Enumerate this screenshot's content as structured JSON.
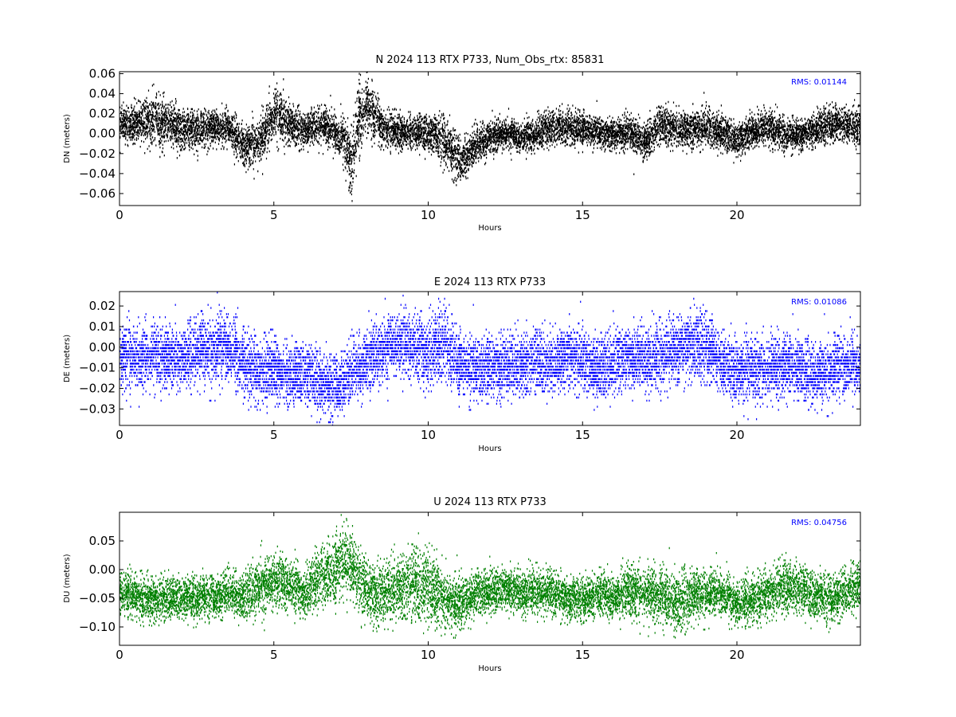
{
  "chart_data": [
    {
      "type": "scatter",
      "title": "N 2024 113 RTX  P733, Num_Obs_rtx: 85831",
      "xlabel": "Hours",
      "ylabel": "DN (meters)",
      "annotation": "RMS:  0.01144",
      "annotation_color": "#0000ff",
      "color": "#000000",
      "xlim": [
        0,
        24
      ],
      "ylim": [
        -0.072,
        0.062
      ],
      "xticks": [
        0,
        5,
        10,
        15,
        20
      ],
      "xtick_labels": [
        "0",
        "5",
        "10",
        "15",
        "20"
      ],
      "yticks": [
        0.06,
        0.04,
        0.02,
        0.0,
        -0.02,
        -0.04,
        -0.06
      ],
      "ytick_labels": [
        "0.06",
        "0.04",
        "0.02",
        "0.00",
        "−0.02",
        "−0.04",
        "−0.06"
      ],
      "x": [
        0,
        0.5,
        1,
        1.5,
        2,
        2.5,
        3,
        3.5,
        4,
        4.5,
        5,
        5.5,
        6,
        6.5,
        7,
        7.25,
        7.5,
        7.75,
        8,
        8.5,
        9,
        9.5,
        10,
        10.5,
        11,
        11.5,
        12,
        12.5,
        13,
        13.5,
        14,
        14.5,
        15,
        15.5,
        16,
        16.5,
        17,
        17.5,
        18,
        18.5,
        19,
        19.5,
        20,
        20.5,
        21,
        21.5,
        22,
        22.5,
        23,
        23.5,
        24
      ],
      "y": [
        0.01,
        0.011,
        0.013,
        0.012,
        0.005,
        0.004,
        0.008,
        0.006,
        -0.012,
        -0.008,
        0.022,
        0.01,
        0.004,
        0.01,
        0.002,
        -0.006,
        -0.03,
        0.015,
        0.03,
        0.007,
        0.002,
        0.003,
        0.001,
        -0.005,
        -0.028,
        -0.012,
        -0.003,
        0.001,
        -0.004,
        0.001,
        0.008,
        0.007,
        0.005,
        0.002,
        -0.001,
        0.004,
        -0.008,
        0.01,
        0.006,
        0.004,
        0.008,
        0.002,
        -0.005,
        0.004,
        0.008,
        0.0,
        -0.002,
        0.005,
        0.011,
        0.009,
        0.006
      ],
      "spread": [
        0.009,
        0.01,
        0.013,
        0.014,
        0.011,
        0.01,
        0.01,
        0.01,
        0.011,
        0.012,
        0.015,
        0.011,
        0.01,
        0.01,
        0.01,
        0.012,
        0.022,
        0.02,
        0.016,
        0.01,
        0.009,
        0.009,
        0.01,
        0.013,
        0.013,
        0.01,
        0.009,
        0.008,
        0.008,
        0.009,
        0.009,
        0.009,
        0.009,
        0.008,
        0.008,
        0.009,
        0.01,
        0.01,
        0.01,
        0.01,
        0.01,
        0.009,
        0.009,
        0.009,
        0.01,
        0.008,
        0.008,
        0.009,
        0.01,
        0.01,
        0.01
      ]
    },
    {
      "type": "scatter",
      "title": "E 2024 113 RTX  P733",
      "xlabel": "Hours",
      "ylabel": "DE (meters)",
      "annotation": "RMS:  0.01086",
      "annotation_color": "#0000ff",
      "color": "#0000ff",
      "xlim": [
        0,
        24
      ],
      "ylim": [
        -0.038,
        0.027
      ],
      "xticks": [
        0,
        5,
        10,
        15,
        20
      ],
      "xtick_labels": [
        "0",
        "5",
        "10",
        "15",
        "20"
      ],
      "yticks": [
        0.02,
        0.01,
        0.0,
        -0.01,
        -0.02,
        -0.03
      ],
      "ytick_labels": [
        "0.02",
        "0.01",
        "0.00",
        "−0.01",
        "−0.02",
        "−0.03"
      ],
      "x": [
        0,
        0.5,
        1,
        1.5,
        2,
        2.5,
        3,
        3.5,
        4,
        4.5,
        5,
        5.5,
        6,
        6.5,
        7,
        7.5,
        8,
        8.5,
        9,
        9.5,
        10,
        10.5,
        11,
        11.5,
        12,
        12.5,
        13,
        13.5,
        14,
        14.5,
        15,
        15.5,
        16,
        16.5,
        17,
        17.5,
        18,
        18.5,
        19,
        19.5,
        20,
        20.5,
        21,
        21.5,
        22,
        22.5,
        23,
        23.5,
        24
      ],
      "y": [
        -0.004,
        -0.005,
        -0.003,
        -0.004,
        -0.006,
        -0.002,
        0.0,
        0.001,
        -0.008,
        -0.012,
        -0.01,
        -0.014,
        -0.012,
        -0.016,
        -0.02,
        -0.012,
        -0.006,
        -0.002,
        0.002,
        0.001,
        -0.002,
        0.002,
        -0.008,
        -0.01,
        -0.01,
        -0.008,
        -0.008,
        -0.006,
        -0.008,
        -0.004,
        -0.006,
        -0.01,
        -0.006,
        -0.004,
        -0.006,
        -0.004,
        -0.002,
        0.002,
        0.001,
        -0.008,
        -0.012,
        -0.01,
        -0.01,
        -0.008,
        -0.01,
        -0.014,
        -0.01,
        -0.008,
        -0.01
      ],
      "spread": [
        0.008,
        0.008,
        0.008,
        0.008,
        0.008,
        0.009,
        0.009,
        0.009,
        0.009,
        0.008,
        0.008,
        0.008,
        0.008,
        0.008,
        0.008,
        0.008,
        0.008,
        0.008,
        0.008,
        0.009,
        0.009,
        0.009,
        0.008,
        0.008,
        0.008,
        0.008,
        0.008,
        0.008,
        0.008,
        0.008,
        0.008,
        0.008,
        0.008,
        0.008,
        0.008,
        0.008,
        0.008,
        0.009,
        0.009,
        0.008,
        0.008,
        0.008,
        0.008,
        0.008,
        0.008,
        0.008,
        0.008,
        0.008,
        0.008
      ]
    },
    {
      "type": "scatter",
      "title": "U 2024 113 RTX  P733",
      "xlabel": "Hours",
      "ylabel": "DU (meters)",
      "annotation": "RMS:  0.04756",
      "annotation_color": "#0000ff",
      "color": "#008000",
      "xlim": [
        0,
        24
      ],
      "ylim": [
        -0.132,
        0.1
      ],
      "xticks": [
        0,
        5,
        10,
        15,
        20
      ],
      "xtick_labels": [
        "0",
        "5",
        "10",
        "15",
        "20"
      ],
      "yticks": [
        0.05,
        0.0,
        -0.05,
        -0.1
      ],
      "ytick_labels": [
        "0.05",
        "0.00",
        "−0.05",
        "−0.10"
      ],
      "x": [
        0,
        0.5,
        1,
        1.5,
        2,
        2.5,
        3,
        3.5,
        4,
        4.5,
        5,
        5.5,
        6,
        6.5,
        7,
        7.25,
        7.5,
        8,
        8.5,
        9,
        9.5,
        10,
        10.5,
        11,
        11.5,
        12,
        12.5,
        13,
        13.5,
        14,
        14.5,
        15,
        15.5,
        16,
        16.5,
        17,
        17.5,
        18,
        18.5,
        19,
        19.5,
        20,
        20.5,
        21,
        21.5,
        22,
        22.5,
        23,
        23.5,
        24
      ],
      "y": [
        -0.04,
        -0.045,
        -0.05,
        -0.05,
        -0.048,
        -0.046,
        -0.048,
        -0.04,
        -0.045,
        -0.03,
        -0.02,
        -0.025,
        -0.04,
        -0.01,
        0.0,
        0.02,
        0.01,
        -0.04,
        -0.04,
        -0.03,
        -0.02,
        -0.03,
        -0.05,
        -0.06,
        -0.04,
        -0.035,
        -0.03,
        -0.04,
        -0.035,
        -0.04,
        -0.05,
        -0.05,
        -0.04,
        -0.05,
        -0.035,
        -0.04,
        -0.04,
        -0.06,
        -0.045,
        -0.04,
        -0.04,
        -0.06,
        -0.05,
        -0.04,
        -0.03,
        -0.03,
        -0.045,
        -0.05,
        -0.04,
        -0.02
      ],
      "spread": [
        0.02,
        0.02,
        0.02,
        0.02,
        0.02,
        0.02,
        0.02,
        0.02,
        0.022,
        0.024,
        0.028,
        0.024,
        0.022,
        0.026,
        0.03,
        0.035,
        0.032,
        0.03,
        0.028,
        0.03,
        0.034,
        0.035,
        0.028,
        0.024,
        0.02,
        0.02,
        0.02,
        0.02,
        0.02,
        0.02,
        0.02,
        0.02,
        0.022,
        0.02,
        0.024,
        0.024,
        0.026,
        0.03,
        0.026,
        0.022,
        0.02,
        0.022,
        0.022,
        0.022,
        0.024,
        0.024,
        0.022,
        0.022,
        0.022,
        0.024
      ]
    }
  ]
}
